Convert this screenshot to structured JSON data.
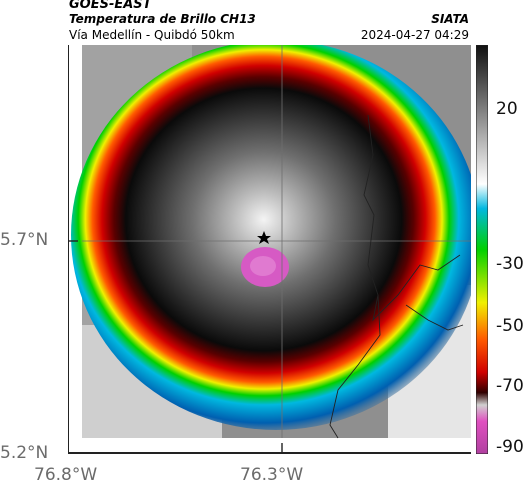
{
  "header": {
    "title": "GOES-EAST",
    "subtitle": "Temperatura de Brillo CH13",
    "place": "Vía Medellín - Quibdó 50km",
    "brand": "SIATA",
    "timestamp": "2024-04-27 04:29"
  },
  "map": {
    "lat_labels": [
      "5.7°N",
      "5.2°N"
    ],
    "lon_labels": [
      "76.8°W",
      "76.3°W"
    ],
    "marker_icon": "star-icon"
  },
  "colorbar": {
    "ticks": [
      "20",
      "-30",
      "-50",
      "-70",
      "-90"
    ],
    "colors": [
      "#101010",
      "#ffffff",
      "#00b8e0",
      "#00d000",
      "#f0f000",
      "#ff5a00",
      "#d00000",
      "#300000",
      "#e050c0"
    ]
  }
}
